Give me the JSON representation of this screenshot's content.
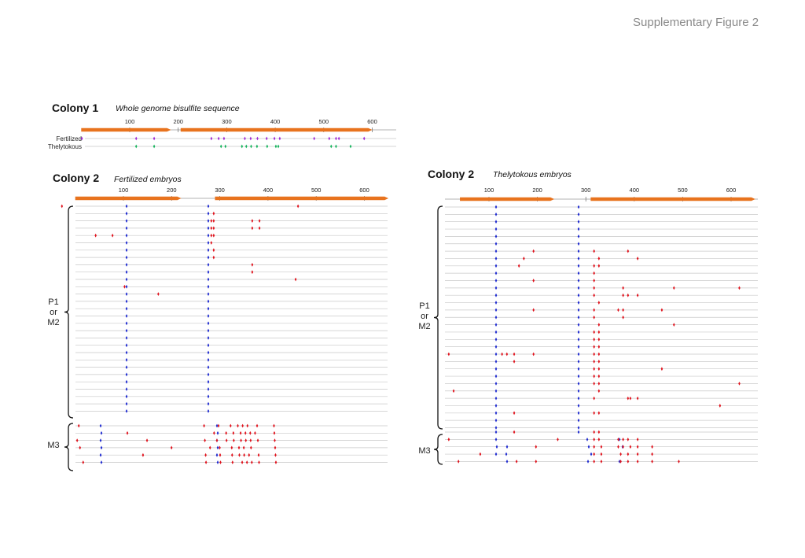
{
  "header": {
    "title": "Supplementary Figure 2"
  },
  "colors": {
    "orange": "#e8731e",
    "blue": "#1f2bd0",
    "red": "#e0141e",
    "purple": "#a02ad6",
    "green": "#15b35c",
    "line": "#c8c8c8"
  },
  "panel1": {
    "colony": "Colony 1",
    "subtitle": "Whole genome bisulfite sequence",
    "ticks": [
      "100",
      "200",
      "300",
      "400",
      "500",
      "600"
    ],
    "tick_values": [
      100,
      200,
      300,
      400,
      500,
      600
    ],
    "genes": [
      [
        0,
        185
      ],
      [
        205,
        600
      ]
    ],
    "rows": [
      {
        "label": "Fertilized",
        "color": "purple",
        "sites": [
          50,
          162,
          199,
          317,
          332,
          343,
          386,
          398,
          412,
          431,
          447,
          458,
          529,
          560,
          574,
          580,
          632
        ]
      },
      {
        "label": "Thelytokous",
        "color": "green",
        "sites": [
          162,
          199,
          337,
          346,
          380,
          389,
          399,
          411,
          432,
          450,
          455,
          564,
          574,
          604
        ]
      }
    ]
  },
  "panel2": {
    "colony": "Colony 2",
    "subtitle": "Fertilized embryos",
    "ticks": [
      "100",
      "200",
      "300",
      "400",
      "500",
      "600"
    ],
    "tick_values": [
      100,
      200,
      300,
      400,
      500,
      600
    ],
    "genes": [
      [
        0,
        220
      ],
      [
        290,
        650
      ]
    ],
    "group_labels": [
      "P1",
      "or",
      "M2",
      "M3"
    ],
    "p1_rows": 29,
    "m3_rows": 6
  },
  "panel3": {
    "colony": "Colony 2",
    "subtitle": "Thelytokous embryos",
    "ticks": [
      "100",
      "200",
      "300",
      "400",
      "500",
      "600"
    ],
    "tick_values": [
      100,
      200,
      300,
      400,
      500,
      600
    ],
    "genes": [
      [
        40,
        235
      ],
      [
        310,
        650
      ]
    ],
    "group_labels": [
      "P1",
      "or",
      "M2",
      "M3"
    ],
    "p1_rows": 31,
    "m3_rows": 5
  }
}
